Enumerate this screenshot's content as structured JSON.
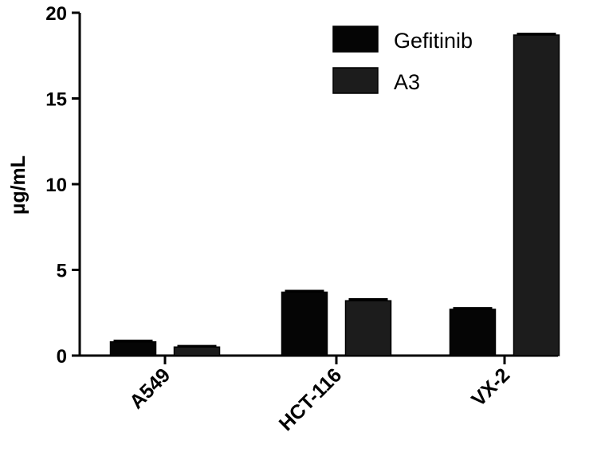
{
  "chart_data": {
    "type": "bar",
    "title": "",
    "xlabel": "",
    "ylabel": "µg/mL",
    "ylim": [
      0,
      20
    ],
    "yticks": [
      0,
      5,
      10,
      15,
      20
    ],
    "categories": [
      "A549",
      "HCT-116",
      "VX-2"
    ],
    "series": [
      {
        "name": "Gefitinib",
        "values": [
          0.8,
          3.7,
          2.7
        ],
        "errors": [
          0.06,
          0.07,
          0.06
        ],
        "color": "#050505"
      },
      {
        "name": "A3",
        "values": [
          0.5,
          3.2,
          18.7
        ],
        "errors": [
          0.05,
          0.08,
          0.07
        ],
        "color": "#1c1c1c"
      }
    ],
    "legend_position": "top-right",
    "grid": false
  }
}
